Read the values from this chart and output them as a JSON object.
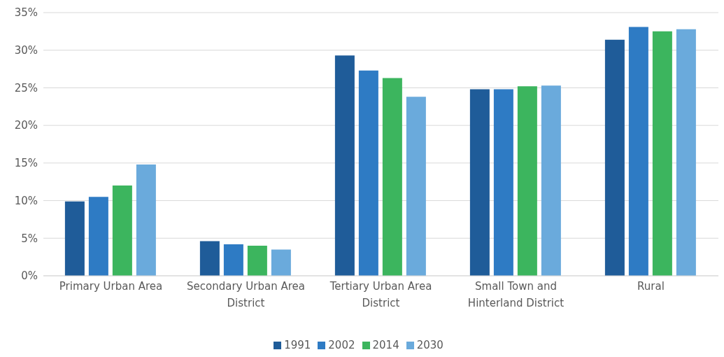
{
  "chart_data": {
    "type": "bar",
    "categories": [
      "Primary Urban Area",
      "Secondary Urban Area District",
      "Tertiary Urban Area District",
      "Small Town and Hinterland District",
      "Rural"
    ],
    "series": [
      {
        "name": "1991",
        "color": "#1f5c99",
        "values": [
          9.9,
          4.6,
          29.3,
          24.8,
          31.4
        ]
      },
      {
        "name": "2002",
        "color": "#2e7bc4",
        "values": [
          10.5,
          4.2,
          27.3,
          24.8,
          33.1
        ]
      },
      {
        "name": "2014",
        "color": "#3cb55e",
        "values": [
          12.0,
          4.0,
          26.3,
          25.2,
          32.5
        ]
      },
      {
        "name": "2030",
        "color": "#6aaadc",
        "values": [
          14.8,
          3.5,
          23.8,
          25.3,
          32.8
        ]
      }
    ],
    "ylim": [
      0,
      35
    ],
    "yticks": [
      {
        "value": 0,
        "label": "0%"
      },
      {
        "value": 5,
        "label": "5%"
      },
      {
        "value": 10,
        "label": "10%"
      },
      {
        "value": 15,
        "label": "15%"
      },
      {
        "value": 20,
        "label": "20%"
      },
      {
        "value": 25,
        "label": "25%"
      },
      {
        "value": 30,
        "label": "30%"
      },
      {
        "value": 35,
        "label": "35%"
      }
    ],
    "grid": "y",
    "legend": "bottom"
  }
}
